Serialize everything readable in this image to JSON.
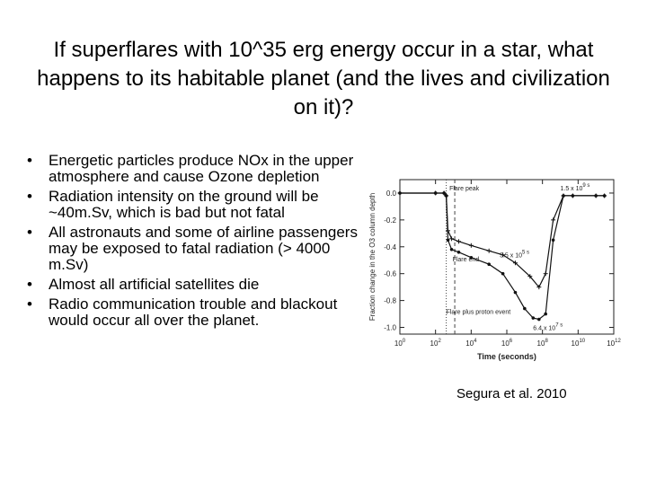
{
  "slide": {
    "title": "If superflares with 10^35 erg energy occur in a star, what happens to its habitable planet (and the lives and civilization on it)?",
    "bullets": [
      "Energetic particles produce NOx in the upper atmosphere and cause Ozone depletion",
      "Radiation intensity on the ground will be ~40m.Sv, which is bad but not fatal",
      "All astronauts and some of airline passengers may be exposed to fatal radiation  (> 4000 m.Sv)",
      "Almost all artificial satellites die",
      "Radio communication trouble and blackout would occur all over the planet."
    ],
    "bullet_glyph": "•",
    "caption": "Segura et al. 2010"
  },
  "chart_data": {
    "type": "line",
    "xlabel": "Time (seconds)",
    "ylabel": "Fraction change in the O3 column depth",
    "xscale": "log",
    "xlim": [
      1,
      1000000000000.0
    ],
    "ylim": [
      -1.05,
      0.1
    ],
    "x_ticks": [
      {
        "v": 1,
        "label": "10^0"
      },
      {
        "v": 100,
        "label": "10^2"
      },
      {
        "v": 10000,
        "label": "10^4"
      },
      {
        "v": 1000000,
        "label": "10^6"
      },
      {
        "v": 100000000,
        "label": "10^8"
      },
      {
        "v": 10000000000,
        "label": "10^10"
      },
      {
        "v": 1000000000000,
        "label": "10^12"
      }
    ],
    "y_ticks": [
      {
        "v": 0.0,
        "label": "0.0"
      },
      {
        "v": -0.2,
        "label": "-0.2"
      },
      {
        "v": -0.4,
        "label": "-0.4"
      },
      {
        "v": -0.6,
        "label": "-0.6"
      },
      {
        "v": -0.8,
        "label": "-0.8"
      },
      {
        "v": -1.0,
        "label": "-1.0"
      }
    ],
    "vlines": [
      {
        "x": 400,
        "style": "dotted"
      },
      {
        "x": 1200,
        "style": "dashed"
      }
    ],
    "series": [
      {
        "x": [
          1,
          100,
          300,
          400,
          500,
          800,
          2000,
          10000,
          100000,
          600000,
          3000000,
          20000000,
          64000000,
          150000000,
          400000000,
          1500000000,
          5000000000,
          100000000000,
          300000000000
        ],
        "y": [
          0.0,
          0.0,
          0.0,
          -0.02,
          -0.28,
          -0.34,
          -0.36,
          -0.39,
          -0.43,
          -0.46,
          -0.52,
          -0.62,
          -0.7,
          -0.6,
          -0.2,
          -0.02,
          -0.02,
          -0.02,
          -0.02
        ]
      },
      {
        "x": [
          1,
          100,
          300,
          400,
          500,
          800,
          2000,
          10000,
          100000,
          600000,
          3000000,
          10000000,
          30000000,
          64000000,
          150000000,
          400000000,
          1500000000,
          5000000000,
          100000000000,
          300000000000
        ],
        "y": [
          0.0,
          0.0,
          0.0,
          -0.02,
          -0.35,
          -0.42,
          -0.44,
          -0.48,
          -0.53,
          -0.6,
          -0.74,
          -0.86,
          -0.93,
          -0.94,
          -0.9,
          -0.35,
          -0.02,
          -0.02,
          -0.02,
          -0.02
        ]
      }
    ],
    "annotations": [
      {
        "text": "Flare peak",
        "x": 600,
        "y": 0.02
      },
      {
        "text": "1.5 x 10^9 s",
        "x": 1000000000,
        "y": 0.02
      },
      {
        "text": "5.5 x 10^5 s",
        "x": 400000,
        "y": -0.48
      },
      {
        "text": "Flare end",
        "x": 900,
        "y": -0.51
      },
      {
        "text": "Flare plus proton event",
        "x": 400,
        "y": -0.9
      },
      {
        "text": "6.4 x 10^7 s",
        "x": 30000000,
        "y": -1.02
      }
    ]
  }
}
